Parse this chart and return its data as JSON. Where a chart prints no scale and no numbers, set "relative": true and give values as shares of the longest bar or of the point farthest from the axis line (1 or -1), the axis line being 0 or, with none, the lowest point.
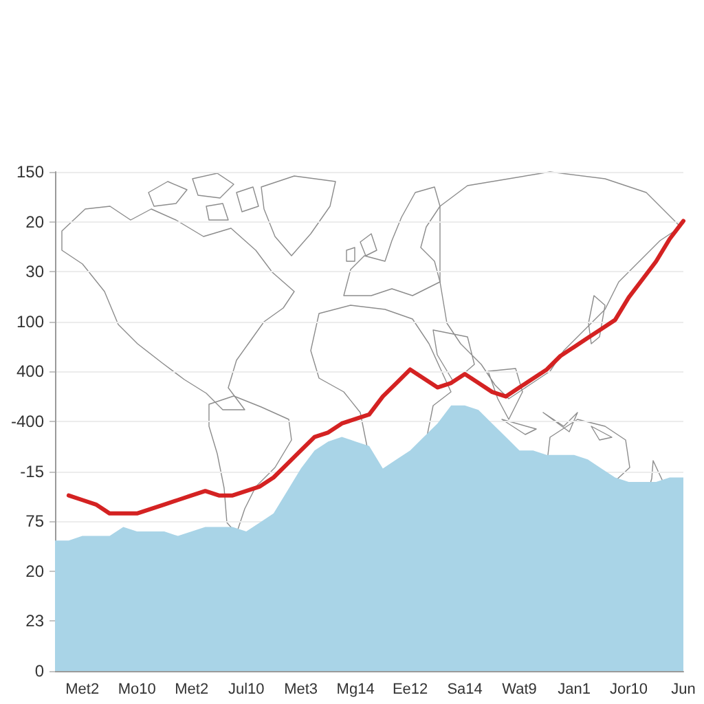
{
  "chart_data": {
    "type": "line",
    "relative": true,
    "categories": [
      null,
      null,
      "Met2",
      null,
      null,
      null,
      "Mo10",
      null,
      null,
      null,
      "Met2",
      null,
      null,
      null,
      "Jul10",
      null,
      null,
      null,
      "Met3",
      null,
      null,
      null,
      "Mg14",
      null,
      null,
      null,
      "Ee12",
      null,
      null,
      null,
      "Sa14",
      null,
      null,
      null,
      "Wat9",
      null,
      null,
      null,
      "Jan1",
      null,
      null,
      null,
      "Jor10",
      null,
      null,
      null,
      "Jun"
    ],
    "annotations": [
      "150",
      "20",
      "30",
      "100",
      "400",
      "-400",
      "-15",
      "75",
      "20",
      "23",
      "0"
    ],
    "grid": "y",
    "marker": "none",
    "line_style": "solid",
    "series": [
      {
        "type": "area",
        "color": "#a9d4e7",
        "values": [
          0.29,
          0.29,
          0.3,
          0.3,
          0.3,
          0.32,
          0.31,
          0.31,
          0.31,
          0.3,
          0.31,
          0.32,
          0.32,
          0.32,
          0.31,
          0.33,
          0.35,
          0.4,
          0.45,
          0.49,
          0.51,
          0.52,
          0.51,
          0.5,
          0.45,
          0.47,
          0.49,
          0.52,
          0.55,
          0.59,
          0.59,
          0.58,
          0.55,
          0.52,
          0.49,
          0.49,
          0.48,
          0.48,
          0.48,
          0.47,
          0.45,
          0.43,
          0.42,
          0.42,
          0.42,
          0.43,
          0.43
        ]
      },
      {
        "color": "#d42222",
        "values": [
          null,
          0.39,
          0.38,
          0.37,
          0.35,
          0.35,
          0.35,
          0.36,
          0.37,
          0.38,
          0.39,
          0.4,
          0.39,
          0.39,
          0.4,
          0.41,
          0.43,
          0.46,
          0.49,
          0.52,
          0.53,
          0.55,
          0.56,
          0.57,
          0.61,
          0.64,
          0.67,
          0.65,
          0.63,
          0.64,
          0.66,
          0.64,
          0.62,
          0.61,
          0.63,
          0.65,
          0.67,
          0.7,
          0.72,
          0.74,
          0.76,
          0.78,
          0.83,
          0.87,
          0.91,
          0.96,
          1
        ]
      }
    ]
  }
}
